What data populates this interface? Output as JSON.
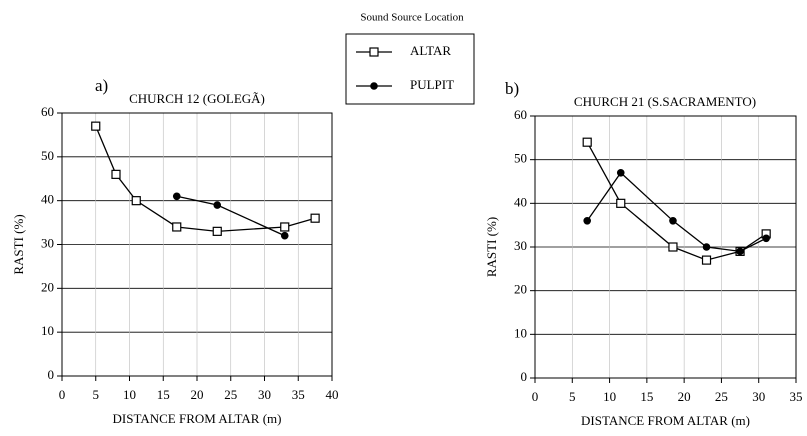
{
  "chart_data": [
    {
      "type": "line",
      "label": "a)",
      "title": "CHURCH 12 (GOLEGÃ)",
      "legend_title": "Sound Source Location",
      "xlabel": "DISTANCE FROM ALTAR (m)",
      "ylabel": "RASTI (%)",
      "xlim": [
        0,
        40
      ],
      "xticks": [
        0,
        5,
        10,
        15,
        20,
        25,
        30,
        35,
        40
      ],
      "ylim": [
        0,
        60
      ],
      "yticks": [
        0,
        10,
        20,
        30,
        40,
        50,
        60
      ],
      "grid": true,
      "series": [
        {
          "name": "ALTAR",
          "color": "#000000",
          "marker": "square-open",
          "x": [
            5,
            8,
            11,
            17,
            23,
            33,
            37.5
          ],
          "values": [
            57,
            46,
            40,
            34,
            33,
            34,
            36
          ]
        },
        {
          "name": "PULPIT",
          "color": "#000000",
          "marker": "circle",
          "x": [
            17,
            23,
            33
          ],
          "values": [
            41,
            39,
            32
          ]
        }
      ]
    },
    {
      "type": "line",
      "label": "b)",
      "title": "CHURCH 21 (S.SACRAMENTO)",
      "xlabel": "DISTANCE FROM ALTAR (m)",
      "ylabel": "RASTI (%)",
      "xlim": [
        0,
        35
      ],
      "xticks": [
        0,
        5,
        10,
        15,
        20,
        25,
        30,
        35
      ],
      "ylim": [
        0,
        60
      ],
      "yticks": [
        0,
        10,
        20,
        30,
        40,
        50,
        60
      ],
      "grid": true,
      "series": [
        {
          "name": "ALTAR",
          "color": "#000000",
          "marker": "square-open",
          "x": [
            7,
            11.5,
            18.5,
            23,
            27.5,
            31
          ],
          "values": [
            54,
            40,
            30,
            27,
            29,
            33
          ]
        },
        {
          "name": "PULPIT",
          "color": "#000000",
          "marker": "circle",
          "x": [
            7,
            11.5,
            18.5,
            23,
            27.5,
            31
          ],
          "values": [
            36,
            47,
            36,
            30,
            29,
            32
          ]
        }
      ]
    }
  ]
}
